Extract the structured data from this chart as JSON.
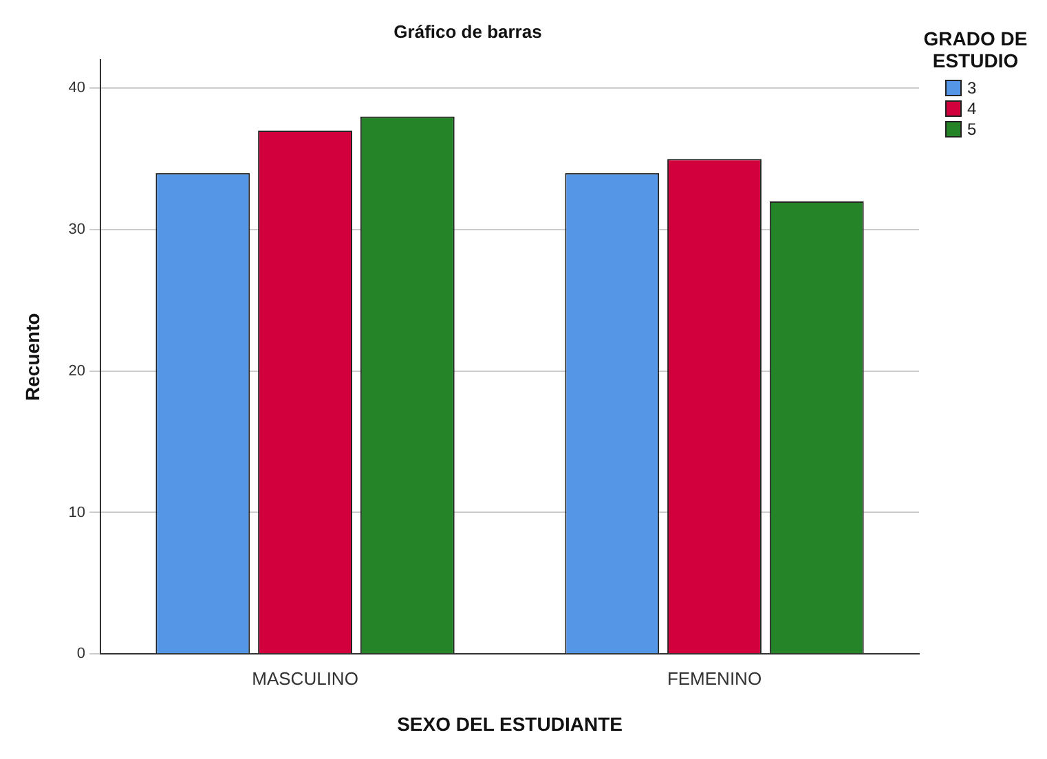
{
  "chart_data": {
    "type": "bar",
    "title": "Gráfico de barras",
    "xlabel": "SEXO DEL ESTUDIANTE",
    "ylabel": "Recuento",
    "legend_title": "GRADO DE ESTUDIO",
    "categories": [
      "MASCULINO",
      "FEMENINO"
    ],
    "series": [
      {
        "name": "3",
        "color": "#5596e6",
        "values": [
          34,
          34
        ]
      },
      {
        "name": "4",
        "color": "#d2003c",
        "values": [
          37,
          35
        ]
      },
      {
        "name": "5",
        "color": "#258328",
        "values": [
          38,
          32
        ]
      }
    ],
    "ylim": [
      0,
      42
    ],
    "yticks": [
      0,
      10,
      20,
      30,
      40
    ],
    "grid": "y",
    "legend": "top right"
  }
}
